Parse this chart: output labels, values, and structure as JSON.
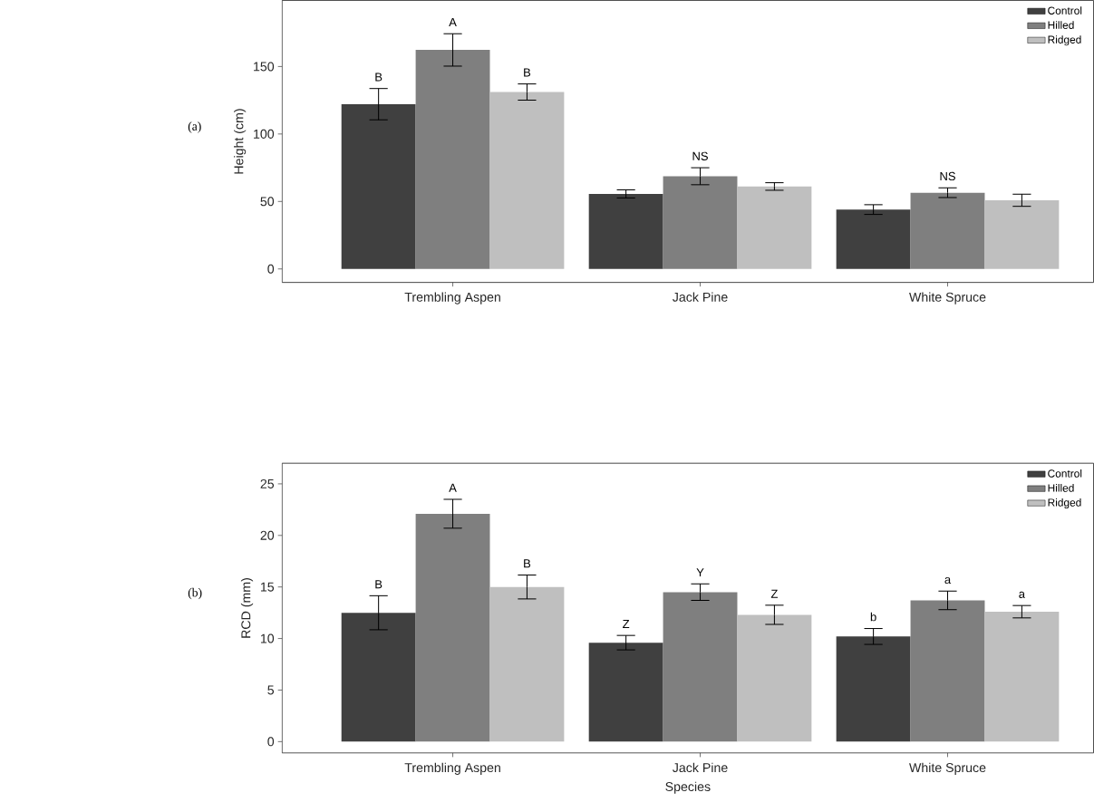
{
  "chart_data": [
    {
      "type": "bar",
      "ylabel": "Height (cm)",
      "categories": [
        "Trembling Aspen",
        "Jack Pine",
        "White Spruce"
      ],
      "ylim": [
        -10,
        199
      ],
      "yticks": [
        0,
        50,
        100,
        150
      ],
      "legend": "top right",
      "annotations": [
        "(a)"
      ],
      "series": [
        {
          "name": "Control",
          "color": "#404040",
          "values": [
            122.1,
            55.6,
            44.0
          ],
          "errors": [
            11.6,
            3.0,
            3.6
          ],
          "value_labels": [
            "B",
            null,
            null
          ]
        },
        {
          "name": "Hilled",
          "color": "#7f7f7f",
          "values": [
            162.3,
            68.7,
            56.5
          ],
          "errors": [
            12.0,
            6.3,
            3.6
          ],
          "value_labels": [
            "A",
            "NS",
            "NS"
          ]
        },
        {
          "name": "Ridged",
          "color": "#bfbfbf",
          "values": [
            131.1,
            61.1,
            50.9
          ],
          "errors": [
            6.0,
            2.8,
            4.5
          ],
          "value_labels": [
            "B",
            null,
            null
          ]
        }
      ]
    },
    {
      "type": "bar",
      "ylabel": "RCD (mm)",
      "xlabel": "Species",
      "categories": [
        "Trembling Aspen",
        "Jack Pine",
        "White Spruce"
      ],
      "ylim": [
        -1.1,
        27
      ],
      "yticks": [
        0,
        5,
        10,
        15,
        20,
        25
      ],
      "legend": "top right",
      "annotations": [
        "(b)"
      ],
      "series": [
        {
          "name": "Control",
          "color": "#404040",
          "values": [
            12.5,
            9.6,
            10.2
          ],
          "errors": [
            1.65,
            0.7,
            0.77
          ],
          "value_labels": [
            "B",
            "Z",
            "b"
          ]
        },
        {
          "name": "Hilled",
          "color": "#7f7f7f",
          "values": [
            22.1,
            14.5,
            13.7
          ],
          "errors": [
            1.4,
            0.8,
            0.9
          ],
          "value_labels": [
            "A",
            "Y",
            "a"
          ]
        },
        {
          "name": "Ridged",
          "color": "#bfbfbf",
          "values": [
            15.0,
            12.3,
            12.6
          ],
          "errors": [
            1.16,
            0.93,
            0.6
          ],
          "value_labels": [
            "B",
            "Z",
            "a"
          ]
        }
      ]
    }
  ]
}
